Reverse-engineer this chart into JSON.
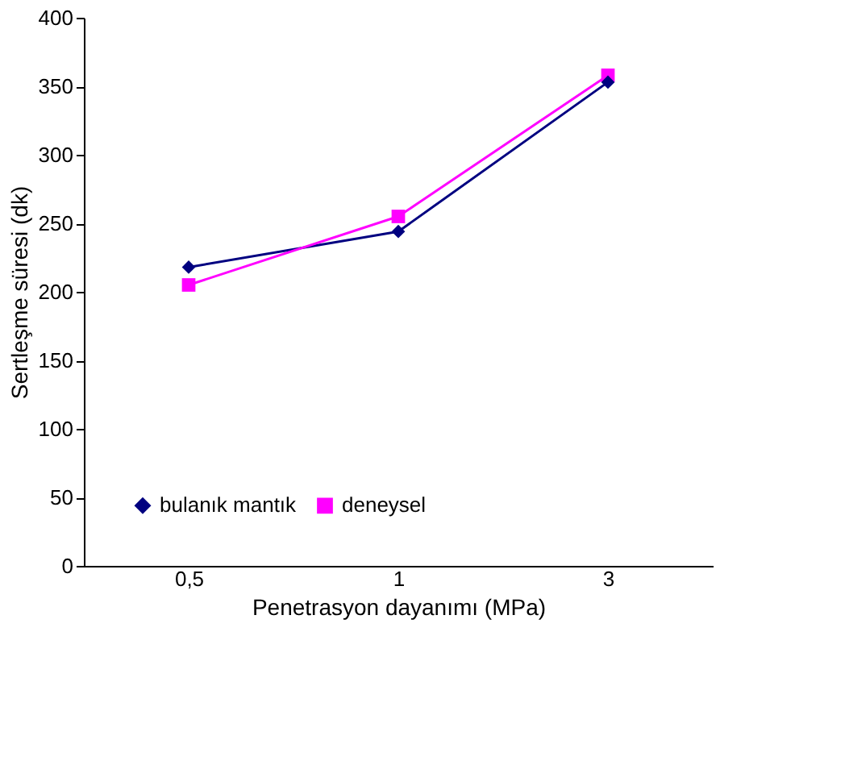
{
  "chart_data": {
    "type": "line",
    "xlabel": "Penetrasyon dayanımı (MPa)",
    "ylabel": "Sertleşme süresi (dk)",
    "categories": [
      "0,5",
      "1",
      "3"
    ],
    "series": [
      {
        "name": "bulanık mantık",
        "color": "#000080",
        "marker": "diamond",
        "values": [
          218,
          244,
          353
        ]
      },
      {
        "name": "deneysel",
        "color": "#ff00ff",
        "marker": "square",
        "values": [
          205,
          255,
          358
        ]
      }
    ],
    "ylim": [
      0,
      400
    ],
    "yticks": [
      0,
      50,
      100,
      150,
      200,
      250,
      300,
      350,
      400
    ],
    "grid": false,
    "legend": "bottom left",
    "line_style": "solid"
  }
}
